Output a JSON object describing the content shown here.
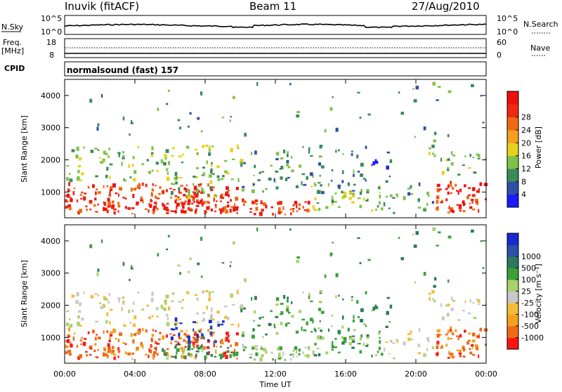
{
  "header": {
    "station": "Inuvik (fitACF)",
    "beam": "Beam 11",
    "date": "27/Aug/2010"
  },
  "colors": {
    "power": [
      "#1a1aff",
      "#2c4fa8",
      "#3a8a5a",
      "#7fc24a",
      "#e6d21e",
      "#f5a01e",
      "#f06a14",
      "#ee2a10",
      "#ee1010"
    ],
    "velocity": [
      "#ff1414",
      "#f06a14",
      "#f5a01e",
      "#f5bb3a",
      "#c8c8c8",
      "#a8d26a",
      "#3aa03a",
      "#2c7a5a",
      "#2c4fa8",
      "#1a2ad0"
    ]
  },
  "strips": {
    "nsky": {
      "label": "N.Sky",
      "left_top": "10^5",
      "left_bottom": "10^0",
      "right_top": "10^5",
      "right_bottom": "10^0",
      "right_label": "N.Search"
    },
    "freq": {
      "label_top": "Freq.",
      "label_bottom": "[MHz]",
      "left_top": "18",
      "left_bottom": "8",
      "right_top": "60",
      "right_bottom": "0",
      "right_label": "Nave"
    },
    "cpid": {
      "label": "CPID",
      "text": "normalsound (fast) 157"
    }
  },
  "chart_data": [
    {
      "type": "heatmap",
      "quantity": "power",
      "ylabel": "Slant Range [km]",
      "yticks": [
        "1000",
        "2000",
        "3000",
        "4000"
      ],
      "ylim": [
        200,
        4500
      ],
      "colorbar_label": "Power [dB]",
      "colorbar_ticks": [
        "4",
        "8",
        "12",
        "16",
        "20",
        "24",
        "28"
      ],
      "colorbar_range": [
        0,
        32
      ]
    },
    {
      "type": "heatmap",
      "quantity": "velocity",
      "ylabel": "Slant Range [km]",
      "yticks": [
        "1000",
        "2000",
        "3000",
        "4000"
      ],
      "ylim": [
        200,
        4500
      ],
      "xlabel": "Time UT",
      "xticks": [
        "00:00",
        "04:00",
        "08:00",
        "12:00",
        "16:00",
        "20:00",
        "00:00"
      ],
      "xlim_hours": [
        0,
        24
      ],
      "colorbar_label": "Velocity [m s⁻¹]",
      "colorbar_ticks": [
        "-1000",
        "-500",
        "-100",
        "-25",
        "25",
        "100",
        "500",
        "1000"
      ]
    }
  ]
}
